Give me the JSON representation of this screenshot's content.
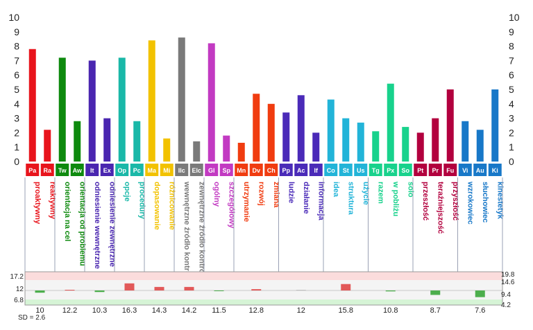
{
  "chart_data": {
    "type": "bar",
    "y_ticks": [
      "0",
      "1",
      "2",
      "3",
      "4",
      "5",
      "6",
      "7",
      "8",
      "9",
      "10"
    ],
    "ylim": [
      0,
      10
    ],
    "grid": false,
    "categories": [
      {
        "code": "Pa",
        "label": "proaktywny",
        "value": 7.8,
        "color": "#e8141c"
      },
      {
        "code": "Ra",
        "label": "reaktywny",
        "value": 2.2,
        "color": "#e8141c"
      },
      {
        "code": "Tw",
        "label": "orientacja na cel",
        "value": 7.2,
        "color": "#0e8a0e"
      },
      {
        "code": "Aw",
        "label": "orientacja od problemu",
        "value": 2.8,
        "color": "#0e8a0e"
      },
      {
        "code": "It",
        "label": "odniesienie wewnętrzne",
        "value": 7.0,
        "color": "#4a26b0"
      },
      {
        "code": "Ex",
        "label": "odniesienie zewnętrzne",
        "value": 3.0,
        "color": "#4a26b0"
      },
      {
        "code": "Op",
        "label": "opcje",
        "value": 7.2,
        "color": "#1ab8a8"
      },
      {
        "code": "Pc",
        "label": "procedury",
        "value": 2.8,
        "color": "#1ab8a8"
      },
      {
        "code": "Ma",
        "label": "dopasowanie",
        "value": 8.4,
        "color": "#f2c200"
      },
      {
        "code": "Mi",
        "label": "różnicowanie",
        "value": 1.6,
        "color": "#f2c200"
      },
      {
        "code": "IIc",
        "label": "wewnętrzne źródło kontroli",
        "value": 8.6,
        "color": "#7a7a7a"
      },
      {
        "code": "Elc",
        "label": "zewnętrzne źródło kontroli",
        "value": 1.4,
        "color": "#7a7a7a"
      },
      {
        "code": "Gl",
        "label": "ogólny",
        "value": 8.2,
        "color": "#c23ac2"
      },
      {
        "code": "Sp",
        "label": "szczegółowy",
        "value": 1.8,
        "color": "#c23ac2"
      },
      {
        "code": "Mn",
        "label": "utrzymanie",
        "value": 1.3,
        "color": "#f03c10"
      },
      {
        "code": "Dv",
        "label": "rozwój",
        "value": 4.7,
        "color": "#f03c10"
      },
      {
        "code": "Ch",
        "label": "zmiana",
        "value": 4.0,
        "color": "#f03c10"
      },
      {
        "code": "Pp",
        "label": "ludzie",
        "value": 3.4,
        "color": "#4a2ab8"
      },
      {
        "code": "Ac",
        "label": "działanie",
        "value": 4.6,
        "color": "#4a2ab8"
      },
      {
        "code": "If",
        "label": "informacja",
        "value": 2.0,
        "color": "#4a2ab8"
      },
      {
        "code": "Co",
        "label": "idea",
        "value": 4.3,
        "color": "#22b4d8"
      },
      {
        "code": "St",
        "label": "struktura",
        "value": 3.0,
        "color": "#22b4d8"
      },
      {
        "code": "Us",
        "label": "użycie",
        "value": 2.7,
        "color": "#22b4d8"
      },
      {
        "code": "Tg",
        "label": "razem",
        "value": 2.1,
        "color": "#18d28c"
      },
      {
        "code": "Px",
        "label": "w pobliżu",
        "value": 5.4,
        "color": "#18d28c"
      },
      {
        "code": "So",
        "label": "solo",
        "value": 2.4,
        "color": "#18d28c"
      },
      {
        "code": "Pt",
        "label": "przeszłość",
        "value": 2.0,
        "color": "#b2003e"
      },
      {
        "code": "Pr",
        "label": "teraźniejszość",
        "value": 3.0,
        "color": "#b2003e"
      },
      {
        "code": "Fu",
        "label": "przyszłość",
        "value": 5.0,
        "color": "#b2003e"
      },
      {
        "code": "Vi",
        "label": "wzrokowiec",
        "value": 2.8,
        "color": "#1878c8"
      },
      {
        "code": "Au",
        "label": "słuchowiec",
        "value": 2.2,
        "color": "#1878c8"
      },
      {
        "code": "Ki",
        "label": "kinestetyk",
        "value": 5.0,
        "color": "#1878c8"
      }
    ],
    "groups": [
      {
        "score": "10",
        "size": 2,
        "deviation": -1.0
      },
      {
        "score": "12.2",
        "size": 2,
        "deviation": 0.2
      },
      {
        "score": "10.3",
        "size": 2,
        "deviation": -0.7
      },
      {
        "score": "16.3",
        "size": 2,
        "deviation": 3.2
      },
      {
        "score": "14.3",
        "size": 2,
        "deviation": 1.6
      },
      {
        "score": "14.2",
        "size": 2,
        "deviation": 1.6
      },
      {
        "score": "11.5",
        "size": 2,
        "deviation": -0.2
      },
      {
        "score": "12.8",
        "size": 3,
        "deviation": 0.6
      },
      {
        "score": "12",
        "size": 3,
        "deviation": 0
      },
      {
        "score": "15.8",
        "size": 3,
        "deviation": 2.9
      },
      {
        "score": "10.8",
        "size": 3,
        "deviation": -0.4
      },
      {
        "score": "8.7",
        "size": 3,
        "deviation": -2.0
      },
      {
        "score": "7.6",
        "size": 3,
        "deviation": -3.0
      }
    ],
    "deviation_left_ticks": [
      "17.2",
      "12",
      "6.8"
    ],
    "deviation_right_ticks": [
      "19.8",
      "14.6",
      "9.4",
      "4.2"
    ],
    "sd_label": "SD = 2.6"
  }
}
